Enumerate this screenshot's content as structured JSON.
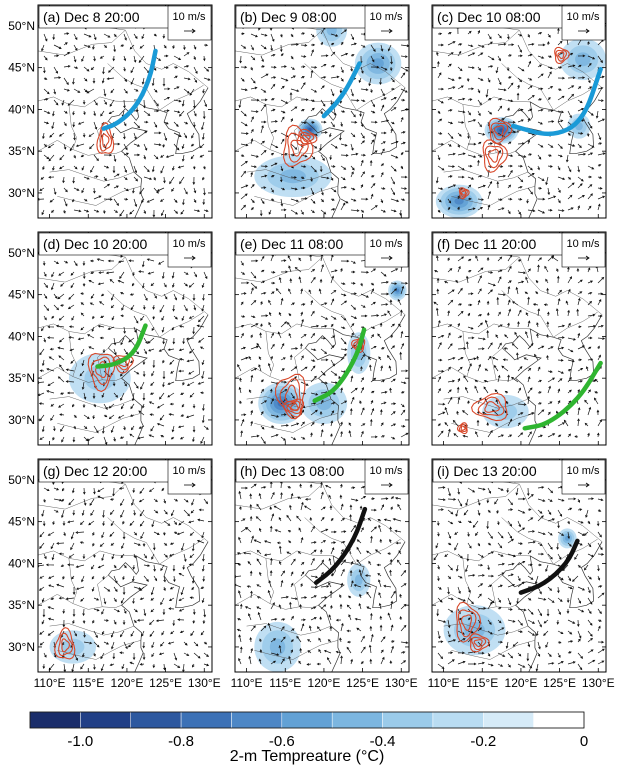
{
  "figure": {
    "axes": {
      "x_ticks": [
        "110°E",
        "115°E",
        "120°E",
        "125°E",
        "130°E"
      ],
      "y_ticks": [
        "50°N",
        "45°N",
        "40°N",
        "35°N",
        "30°N"
      ],
      "lon_range": [
        108.5,
        131
      ],
      "lat_range": [
        27,
        52.5
      ]
    },
    "vector_scale_label": "10 m/s",
    "panels": [
      {
        "label": "(a) Dec 8 20:00",
        "line_color": "#1a9ad7",
        "line": [
          [
            123.7,
            47.0
          ],
          [
            122.9,
            43.5
          ],
          [
            121.2,
            40.3
          ],
          [
            118.8,
            38.3
          ],
          [
            117.0,
            37.7
          ]
        ],
        "contours": [
          [
            117.2,
            36.3,
            1.0,
            1.8
          ]
        ],
        "anomaly": []
      },
      {
        "label": "(b) Dec 9 08:00",
        "line_color": "#1a9ad7",
        "line": [
          [
            124.6,
            45.5
          ],
          [
            123.0,
            42.5
          ],
          [
            121.5,
            40.6
          ],
          [
            120.0,
            39.2
          ]
        ],
        "contours": [
          [
            116.5,
            35.5,
            1.8,
            2.3
          ],
          [
            117.7,
            36.6,
            1.2,
            0.9
          ]
        ],
        "anomaly": [
          [
            118.2,
            37.6,
            1.6,
            1.3,
            0.9
          ],
          [
            127,
            45.5,
            3,
            2.5,
            0.5
          ],
          [
            121,
            49.5,
            2,
            2,
            0.4
          ],
          [
            116,
            32,
            5,
            2.5,
            0.35
          ]
        ]
      },
      {
        "label": "(c) Dec 10 08:00",
        "line_color": "#1a9ad7",
        "line": [
          [
            130.3,
            44.8
          ],
          [
            128.0,
            38.5
          ],
          [
            124.0,
            36.7
          ],
          [
            119.0,
            38.0
          ]
        ],
        "contours": [
          [
            117.2,
            37.5,
            1.4,
            1.4
          ],
          [
            116.5,
            34.5,
            1.5,
            1.8
          ],
          [
            125.2,
            46.5,
            0.9,
            0.9
          ],
          [
            112.6,
            30.0,
            0.6,
            0.6
          ]
        ],
        "anomaly": [
          [
            117.5,
            37.5,
            2.2,
            1.6,
            0.9
          ],
          [
            128,
            46,
            3,
            2.5,
            0.4
          ],
          [
            112,
            29,
            3,
            2,
            0.6
          ],
          [
            127.5,
            38,
            1.5,
            1.5,
            0.35
          ]
        ]
      },
      {
        "label": "(d) Dec 10 20:00",
        "line_color": "#2fb530",
        "line": [
          [
            122.4,
            41.3
          ],
          [
            121.0,
            38.0
          ],
          [
            118.5,
            36.6
          ],
          [
            116.2,
            36.4
          ]
        ],
        "contours": [
          [
            116.7,
            36.0,
            1.6,
            2.2
          ],
          [
            119.5,
            36.8,
            1.2,
            1.0
          ]
        ],
        "anomaly": [
          [
            116.5,
            35,
            4,
            3,
            0.3
          ]
        ]
      },
      {
        "label": "(e) Dec 11 08:00",
        "line_color": "#2fb530",
        "line": [
          [
            125.2,
            40.8
          ],
          [
            124.2,
            37.5
          ],
          [
            121.5,
            33.5
          ],
          [
            118.8,
            32.3
          ]
        ],
        "contours": [
          [
            115.8,
            33.0,
            1.8,
            2.5
          ],
          [
            116.2,
            31.5,
            1.2,
            1.0
          ],
          [
            124.5,
            39.0,
            0.8,
            0.8
          ]
        ],
        "anomaly": [
          [
            114.5,
            32,
            3,
            2.5,
            0.7
          ],
          [
            129.5,
            45.5,
            1.2,
            1.2,
            0.6
          ],
          [
            120,
            32,
            3,
            2.5,
            0.4
          ],
          [
            124.5,
            38,
            1.5,
            2.5,
            0.4
          ]
        ]
      },
      {
        "label": "(f) Dec 11 20:00",
        "line_color": "#2fb530",
        "line": [
          [
            130.3,
            36.8
          ],
          [
            127.5,
            32.5
          ],
          [
            123.5,
            29.5
          ],
          [
            120.5,
            29.0
          ]
        ],
        "contours": [
          [
            116.2,
            31.5,
            2.2,
            1.5
          ],
          [
            112.5,
            29.0,
            0.6,
            0.6
          ]
        ],
        "anomaly": [
          [
            118,
            31,
            3,
            2,
            0.3
          ]
        ]
      },
      {
        "label": "(g) Dec 12 20:00",
        "line_color": "#111111",
        "line": [],
        "contours": [
          [
            112.0,
            30.2,
            1.2,
            1.8
          ]
        ],
        "anomaly": [
          [
            113,
            30,
            3,
            2,
            0.25
          ]
        ]
      },
      {
        "label": "(h) Dec 13 08:00",
        "line_color": "#111111",
        "line": [
          [
            125.3,
            46.5
          ],
          [
            124.0,
            43.0
          ],
          [
            121.5,
            39.5
          ],
          [
            119.0,
            37.7
          ]
        ],
        "contours": [],
        "anomaly": [
          [
            114,
            30,
            3,
            3,
            0.35
          ],
          [
            124.5,
            38,
            1.5,
            2,
            0.35
          ]
        ]
      },
      {
        "label": "(i) Dec 13 20:00",
        "line_color": "#111111",
        "line": [
          [
            127.3,
            42.7
          ],
          [
            126.0,
            40.0
          ],
          [
            123.0,
            37.5
          ],
          [
            120.0,
            36.5
          ]
        ],
        "contours": [
          [
            113.0,
            33.0,
            1.5,
            2.2
          ],
          [
            114.5,
            30.5,
            1.2,
            1.0
          ]
        ],
        "anomaly": [
          [
            114,
            32,
            4,
            3,
            0.4
          ],
          [
            126,
            43,
            1.2,
            1.2,
            0.5
          ]
        ]
      }
    ],
    "colorbar": {
      "title": "2-m Tempreature (°C)",
      "labels": [
        "-1.0",
        "-0.8",
        "-0.6",
        "-0.4",
        "-0.2",
        "0"
      ],
      "colors": [
        "#1a2d6a",
        "#213f86",
        "#2d589f",
        "#3c71b6",
        "#4d87c6",
        "#62a1d5",
        "#7cb6e0",
        "#9bcbea",
        "#b9dcf2",
        "#d6ebf8",
        "#ffffff"
      ]
    }
  }
}
